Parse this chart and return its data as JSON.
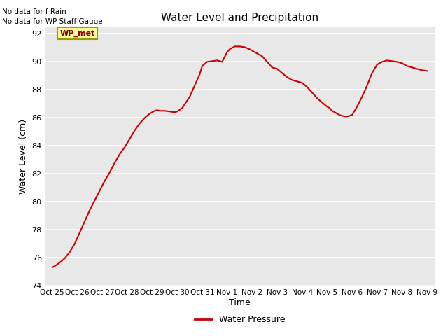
{
  "title": "Water Level and Precipitation",
  "xlabel": "Time",
  "ylabel": "Water Level (cm)",
  "ylim": [
    74,
    92.5
  ],
  "yticks": [
    74,
    76,
    78,
    80,
    82,
    84,
    86,
    88,
    90,
    92
  ],
  "line_color": "#cc0000",
  "line_width": 1.5,
  "background_color": "#e8e8e8",
  "text_no_rain": "No data for f Rain",
  "text_no_staff": "No data for WP Staff Gauge",
  "legend_label": "Water Pressure",
  "legend_box_color": "#ffff99",
  "legend_box_border": "#999900",
  "wp_met_label": "WP_met",
  "x_tick_labels": [
    "Oct 25",
    "Oct 26",
    "Oct 27",
    "Oct 28",
    "Oct 29",
    "Oct 30",
    "Oct 31",
    "Nov 1",
    "Nov 2",
    "Nov 3",
    "Nov 4",
    "Nov 5",
    "Nov 6",
    "Nov 7",
    "Nov 8",
    "Nov 9"
  ],
  "x_data": [
    0.0,
    0.15,
    0.3,
    0.5,
    0.7,
    0.9,
    1.1,
    1.3,
    1.5,
    1.7,
    1.9,
    2.1,
    2.3,
    2.5,
    2.7,
    2.9,
    3.1,
    3.3,
    3.5,
    3.7,
    3.9,
    4.0,
    4.1,
    4.2,
    4.3,
    4.5,
    4.7,
    4.9,
    5.0,
    5.2,
    5.5,
    5.7,
    5.9,
    6.0,
    6.2,
    6.4,
    6.6,
    6.8,
    7.0,
    7.1,
    7.2,
    7.3,
    7.5,
    7.7,
    7.9,
    8.0,
    8.1,
    8.2,
    8.4,
    8.6,
    8.8,
    9.0,
    9.2,
    9.4,
    9.6,
    9.8,
    10.0,
    10.2,
    10.4,
    10.6,
    10.8,
    11.0,
    11.1,
    11.2,
    11.3,
    11.4,
    11.5,
    11.6,
    11.7,
    11.8,
    11.9,
    12.0,
    12.2,
    12.4,
    12.6,
    12.8,
    13.0,
    13.2,
    13.4,
    13.6,
    13.8,
    14.0,
    14.2,
    14.4,
    14.6,
    14.8,
    15.0
  ],
  "y_data": [
    75.3,
    75.45,
    75.65,
    75.95,
    76.4,
    77.0,
    77.8,
    78.6,
    79.4,
    80.1,
    80.8,
    81.5,
    82.1,
    82.8,
    83.4,
    83.9,
    84.5,
    85.1,
    85.6,
    86.0,
    86.3,
    86.4,
    86.5,
    86.55,
    86.5,
    86.5,
    86.45,
    86.4,
    86.45,
    86.7,
    87.5,
    88.3,
    89.1,
    89.7,
    90.0,
    90.05,
    90.1,
    90.0,
    90.7,
    90.9,
    91.0,
    91.1,
    91.1,
    91.05,
    90.9,
    90.8,
    90.7,
    90.6,
    90.4,
    90.0,
    89.6,
    89.5,
    89.2,
    88.9,
    88.7,
    88.6,
    88.5,
    88.2,
    87.8,
    87.4,
    87.1,
    86.8,
    86.7,
    86.5,
    86.4,
    86.3,
    86.2,
    86.15,
    86.1,
    86.1,
    86.15,
    86.2,
    86.8,
    87.5,
    88.3,
    89.2,
    89.8,
    90.0,
    90.1,
    90.05,
    90.0,
    89.9,
    89.7,
    89.6,
    89.5,
    89.4,
    89.35
  ]
}
